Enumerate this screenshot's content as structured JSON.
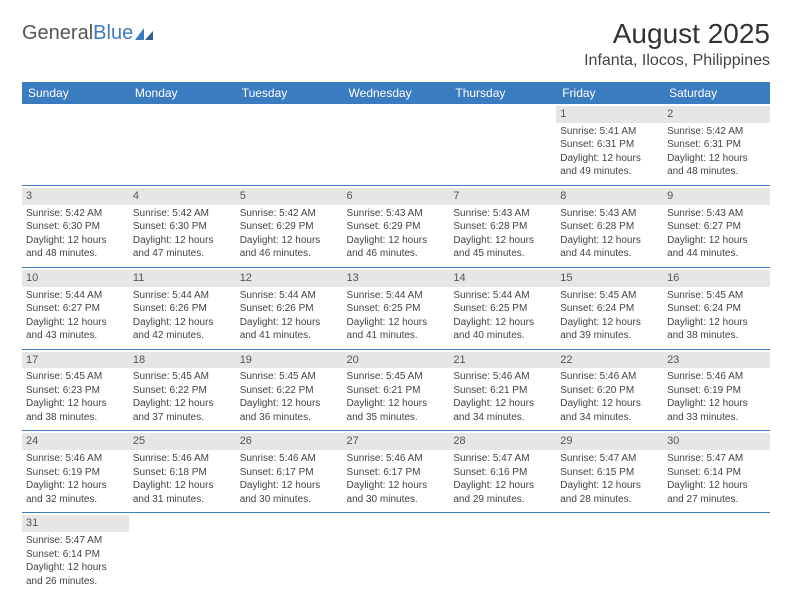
{
  "logo": {
    "text_general": "General",
    "text_blue": "Blue"
  },
  "title": "August 2025",
  "location": "Infanta, Ilocos, Philippines",
  "colors": {
    "header_bg": "#3b7bbf",
    "header_text": "#ffffff",
    "daynum_bg": "#e6e6e6",
    "row_border": "#3b7bbf",
    "body_text": "#444444"
  },
  "day_headers": [
    "Sunday",
    "Monday",
    "Tuesday",
    "Wednesday",
    "Thursday",
    "Friday",
    "Saturday"
  ],
  "weeks": [
    [
      null,
      null,
      null,
      null,
      null,
      {
        "n": "1",
        "sunrise": "Sunrise: 5:41 AM",
        "sunset": "Sunset: 6:31 PM",
        "d1": "Daylight: 12 hours",
        "d2": "and 49 minutes."
      },
      {
        "n": "2",
        "sunrise": "Sunrise: 5:42 AM",
        "sunset": "Sunset: 6:31 PM",
        "d1": "Daylight: 12 hours",
        "d2": "and 48 minutes."
      }
    ],
    [
      {
        "n": "3",
        "sunrise": "Sunrise: 5:42 AM",
        "sunset": "Sunset: 6:30 PM",
        "d1": "Daylight: 12 hours",
        "d2": "and 48 minutes."
      },
      {
        "n": "4",
        "sunrise": "Sunrise: 5:42 AM",
        "sunset": "Sunset: 6:30 PM",
        "d1": "Daylight: 12 hours",
        "d2": "and 47 minutes."
      },
      {
        "n": "5",
        "sunrise": "Sunrise: 5:42 AM",
        "sunset": "Sunset: 6:29 PM",
        "d1": "Daylight: 12 hours",
        "d2": "and 46 minutes."
      },
      {
        "n": "6",
        "sunrise": "Sunrise: 5:43 AM",
        "sunset": "Sunset: 6:29 PM",
        "d1": "Daylight: 12 hours",
        "d2": "and 46 minutes."
      },
      {
        "n": "7",
        "sunrise": "Sunrise: 5:43 AM",
        "sunset": "Sunset: 6:28 PM",
        "d1": "Daylight: 12 hours",
        "d2": "and 45 minutes."
      },
      {
        "n": "8",
        "sunrise": "Sunrise: 5:43 AM",
        "sunset": "Sunset: 6:28 PM",
        "d1": "Daylight: 12 hours",
        "d2": "and 44 minutes."
      },
      {
        "n": "9",
        "sunrise": "Sunrise: 5:43 AM",
        "sunset": "Sunset: 6:27 PM",
        "d1": "Daylight: 12 hours",
        "d2": "and 44 minutes."
      }
    ],
    [
      {
        "n": "10",
        "sunrise": "Sunrise: 5:44 AM",
        "sunset": "Sunset: 6:27 PM",
        "d1": "Daylight: 12 hours",
        "d2": "and 43 minutes."
      },
      {
        "n": "11",
        "sunrise": "Sunrise: 5:44 AM",
        "sunset": "Sunset: 6:26 PM",
        "d1": "Daylight: 12 hours",
        "d2": "and 42 minutes."
      },
      {
        "n": "12",
        "sunrise": "Sunrise: 5:44 AM",
        "sunset": "Sunset: 6:26 PM",
        "d1": "Daylight: 12 hours",
        "d2": "and 41 minutes."
      },
      {
        "n": "13",
        "sunrise": "Sunrise: 5:44 AM",
        "sunset": "Sunset: 6:25 PM",
        "d1": "Daylight: 12 hours",
        "d2": "and 41 minutes."
      },
      {
        "n": "14",
        "sunrise": "Sunrise: 5:44 AM",
        "sunset": "Sunset: 6:25 PM",
        "d1": "Daylight: 12 hours",
        "d2": "and 40 minutes."
      },
      {
        "n": "15",
        "sunrise": "Sunrise: 5:45 AM",
        "sunset": "Sunset: 6:24 PM",
        "d1": "Daylight: 12 hours",
        "d2": "and 39 minutes."
      },
      {
        "n": "16",
        "sunrise": "Sunrise: 5:45 AM",
        "sunset": "Sunset: 6:24 PM",
        "d1": "Daylight: 12 hours",
        "d2": "and 38 minutes."
      }
    ],
    [
      {
        "n": "17",
        "sunrise": "Sunrise: 5:45 AM",
        "sunset": "Sunset: 6:23 PM",
        "d1": "Daylight: 12 hours",
        "d2": "and 38 minutes."
      },
      {
        "n": "18",
        "sunrise": "Sunrise: 5:45 AM",
        "sunset": "Sunset: 6:22 PM",
        "d1": "Daylight: 12 hours",
        "d2": "and 37 minutes."
      },
      {
        "n": "19",
        "sunrise": "Sunrise: 5:45 AM",
        "sunset": "Sunset: 6:22 PM",
        "d1": "Daylight: 12 hours",
        "d2": "and 36 minutes."
      },
      {
        "n": "20",
        "sunrise": "Sunrise: 5:45 AM",
        "sunset": "Sunset: 6:21 PM",
        "d1": "Daylight: 12 hours",
        "d2": "and 35 minutes."
      },
      {
        "n": "21",
        "sunrise": "Sunrise: 5:46 AM",
        "sunset": "Sunset: 6:21 PM",
        "d1": "Daylight: 12 hours",
        "d2": "and 34 minutes."
      },
      {
        "n": "22",
        "sunrise": "Sunrise: 5:46 AM",
        "sunset": "Sunset: 6:20 PM",
        "d1": "Daylight: 12 hours",
        "d2": "and 34 minutes."
      },
      {
        "n": "23",
        "sunrise": "Sunrise: 5:46 AM",
        "sunset": "Sunset: 6:19 PM",
        "d1": "Daylight: 12 hours",
        "d2": "and 33 minutes."
      }
    ],
    [
      {
        "n": "24",
        "sunrise": "Sunrise: 5:46 AM",
        "sunset": "Sunset: 6:19 PM",
        "d1": "Daylight: 12 hours",
        "d2": "and 32 minutes."
      },
      {
        "n": "25",
        "sunrise": "Sunrise: 5:46 AM",
        "sunset": "Sunset: 6:18 PM",
        "d1": "Daylight: 12 hours",
        "d2": "and 31 minutes."
      },
      {
        "n": "26",
        "sunrise": "Sunrise: 5:46 AM",
        "sunset": "Sunset: 6:17 PM",
        "d1": "Daylight: 12 hours",
        "d2": "and 30 minutes."
      },
      {
        "n": "27",
        "sunrise": "Sunrise: 5:46 AM",
        "sunset": "Sunset: 6:17 PM",
        "d1": "Daylight: 12 hours",
        "d2": "and 30 minutes."
      },
      {
        "n": "28",
        "sunrise": "Sunrise: 5:47 AM",
        "sunset": "Sunset: 6:16 PM",
        "d1": "Daylight: 12 hours",
        "d2": "and 29 minutes."
      },
      {
        "n": "29",
        "sunrise": "Sunrise: 5:47 AM",
        "sunset": "Sunset: 6:15 PM",
        "d1": "Daylight: 12 hours",
        "d2": "and 28 minutes."
      },
      {
        "n": "30",
        "sunrise": "Sunrise: 5:47 AM",
        "sunset": "Sunset: 6:14 PM",
        "d1": "Daylight: 12 hours",
        "d2": "and 27 minutes."
      }
    ],
    [
      {
        "n": "31",
        "sunrise": "Sunrise: 5:47 AM",
        "sunset": "Sunset: 6:14 PM",
        "d1": "Daylight: 12 hours",
        "d2": "and 26 minutes."
      },
      null,
      null,
      null,
      null,
      null,
      null
    ]
  ]
}
